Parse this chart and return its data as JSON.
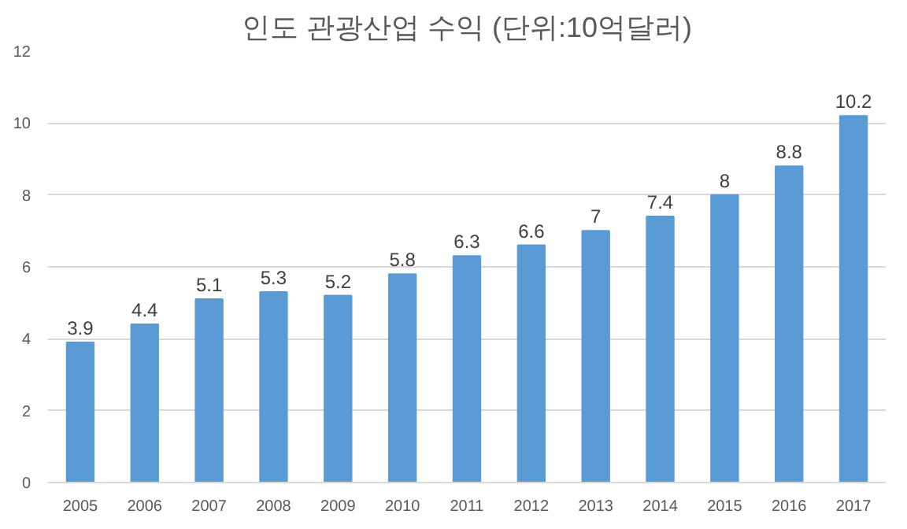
{
  "chart_data": {
    "type": "bar",
    "title": "인도 관광산업 수익 (단위:10억달러)",
    "categories": [
      "2005",
      "2006",
      "2007",
      "2008",
      "2009",
      "2010",
      "2011",
      "2012",
      "2013",
      "2014",
      "2015",
      "2016",
      "2017"
    ],
    "values": [
      3.9,
      4.4,
      5.1,
      5.3,
      5.2,
      5.8,
      6.3,
      6.6,
      7,
      7.4,
      8,
      8.8,
      10.2
    ],
    "color": "#5b9bd5",
    "ylim": [
      0,
      12
    ],
    "yticks": [
      0,
      2,
      4,
      6,
      8,
      10,
      12
    ],
    "grid": "y",
    "data_labels": true
  }
}
